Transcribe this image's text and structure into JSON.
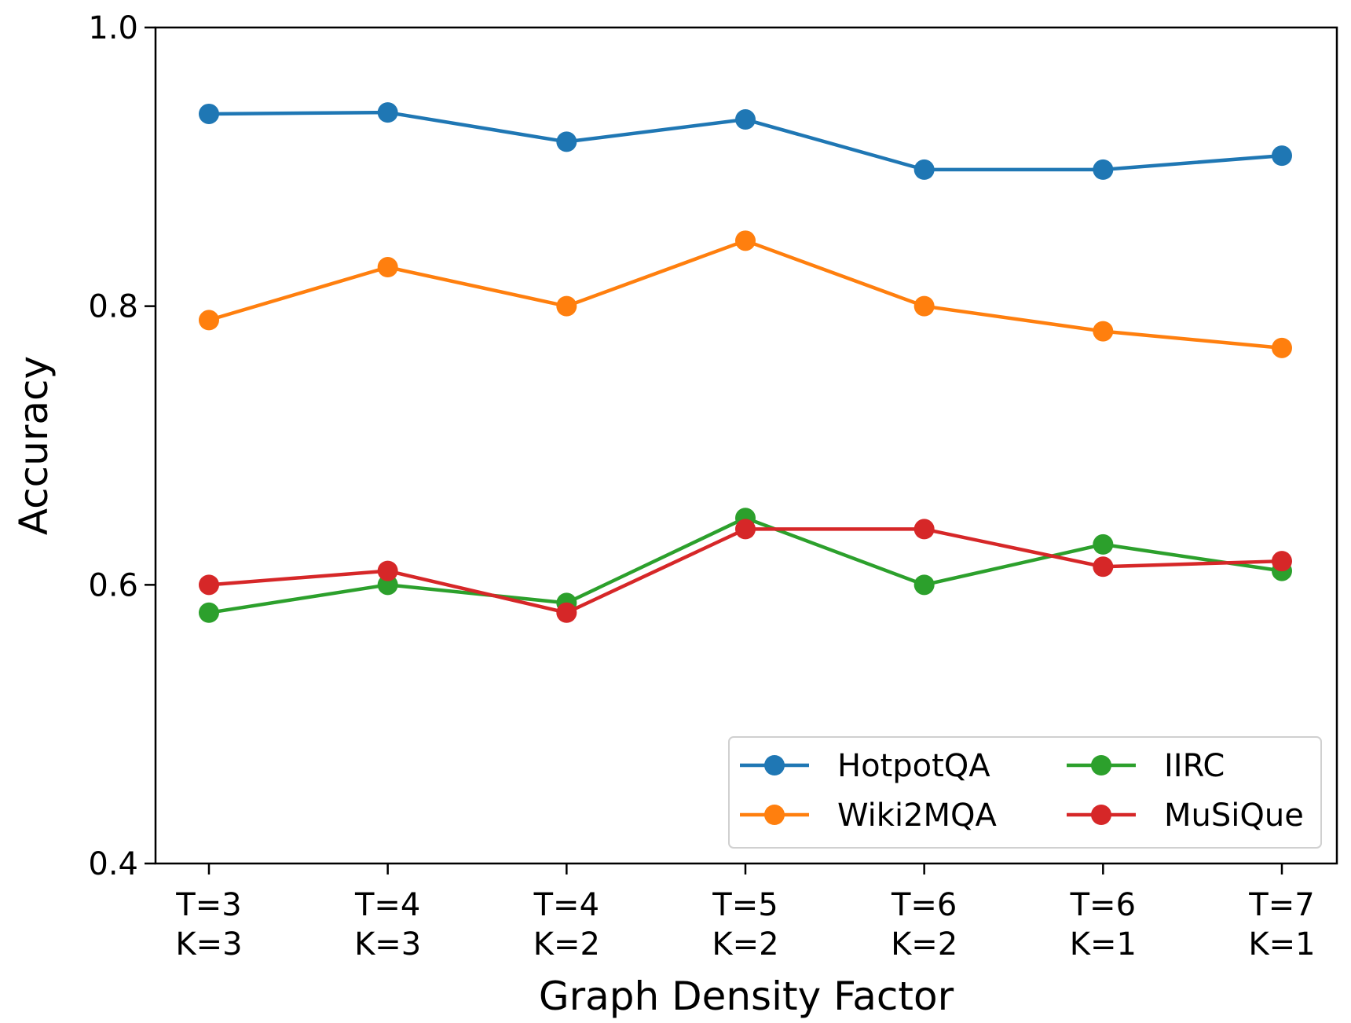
{
  "chart_data": {
    "type": "line",
    "title": "",
    "xlabel": "Graph Density Factor",
    "ylabel": "Accuracy",
    "ylim": [
      0.4,
      1.0
    ],
    "yticks": [
      "0.4",
      "0.6",
      "0.8",
      "1.0"
    ],
    "categories": [
      [
        "T=3",
        "K=3"
      ],
      [
        "T=4",
        "K=3"
      ],
      [
        "T=4",
        "K=2"
      ],
      [
        "T=5",
        "K=2"
      ],
      [
        "T=6",
        "K=2"
      ],
      [
        "T=6",
        "K=1"
      ],
      [
        "T=7",
        "K=1"
      ]
    ],
    "series": [
      {
        "name": "HotpotQA",
        "color": "#1f77b4",
        "values": [
          0.938,
          0.939,
          0.918,
          0.934,
          0.898,
          0.898,
          0.908
        ]
      },
      {
        "name": "Wiki2MQA",
        "color": "#ff7f0e",
        "values": [
          0.79,
          0.828,
          0.8,
          0.847,
          0.8,
          0.782,
          0.77
        ]
      },
      {
        "name": "IIRC",
        "color": "#2ca02c",
        "values": [
          0.58,
          0.6,
          0.587,
          0.648,
          0.6,
          0.629,
          0.61
        ]
      },
      {
        "name": "MuSiQue",
        "color": "#d62728",
        "values": [
          0.6,
          0.61,
          0.58,
          0.64,
          0.64,
          0.613,
          0.617
        ]
      }
    ],
    "legend": {
      "position": "lower-right",
      "columns": 2
    },
    "grid": false
  }
}
